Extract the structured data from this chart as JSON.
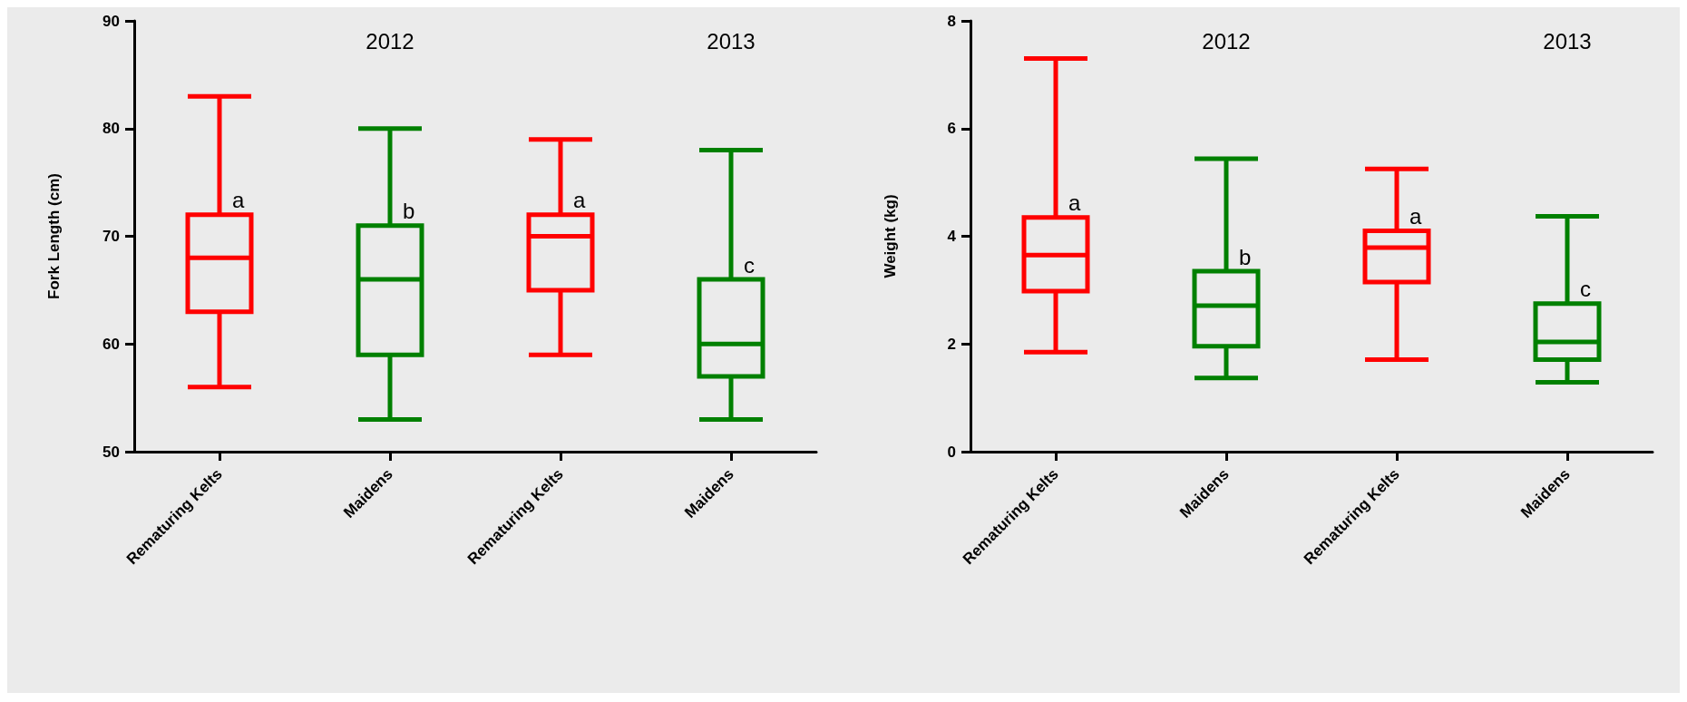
{
  "chart_data": [
    {
      "type": "box",
      "ylabel": "Fork Length (cm)",
      "categories": [
        "Rematuring Kelts",
        "Maidens",
        "Rematuring Kelts",
        "Maidens"
      ],
      "colors": [
        "#ff0000",
        "#008000",
        "#ff0000",
        "#008000"
      ],
      "boxes": [
        {
          "low": 56,
          "q1": 63,
          "median": 68,
          "q3": 72,
          "high": 83
        },
        {
          "low": 53,
          "q1": 59,
          "median": 66,
          "q3": 71,
          "high": 80
        },
        {
          "low": 59,
          "q1": 65,
          "median": 70,
          "q3": 72,
          "high": 79
        },
        {
          "low": 53,
          "q1": 57,
          "median": 60,
          "q3": 66,
          "high": 78
        }
      ],
      "ylim": [
        50,
        90
      ],
      "yticks": [
        50,
        60,
        70,
        80,
        90
      ],
      "grid": false,
      "annotations": [
        "2012",
        "2013",
        "a",
        "b",
        "a",
        "c"
      ]
    },
    {
      "type": "box",
      "ylabel": "Weight (kg)",
      "categories": [
        "Rematuring Kelts",
        "Maidens",
        "Rematuring Kelts",
        "Maidens"
      ],
      "colors": [
        "#ff0000",
        "#008000",
        "#ff0000",
        "#008000"
      ],
      "boxes": [
        {
          "low": 1.85,
          "q1": 2.98,
          "median": 3.65,
          "q3": 4.35,
          "high": 7.3
        },
        {
          "low": 1.37,
          "q1": 1.96,
          "median": 2.71,
          "q3": 3.35,
          "high": 5.44
        },
        {
          "low": 1.71,
          "q1": 3.15,
          "median": 3.79,
          "q3": 4.1,
          "high": 5.25
        },
        {
          "low": 1.29,
          "q1": 1.71,
          "median": 2.04,
          "q3": 2.75,
          "high": 4.37
        }
      ],
      "ylim": [
        0,
        8
      ],
      "yticks": [
        0,
        2,
        4,
        6,
        8
      ],
      "grid": false,
      "annotations": [
        "2012",
        "2013",
        "a",
        "b",
        "a",
        "c"
      ]
    }
  ]
}
